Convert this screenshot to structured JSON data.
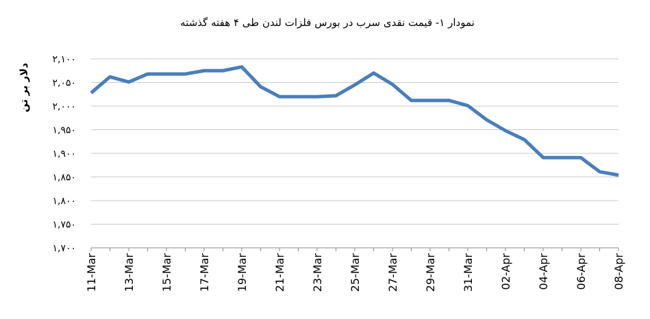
{
  "chart_data": {
    "type": "line",
    "title": "نمودار ۱- قیمت نقدی سرب  در بورس فلزات لندن طی ۴ هفته گذشته",
    "y_label": "دلار بر تن",
    "categories": [
      "11-Mar",
      null,
      "13-Mar",
      null,
      "15-Mar",
      null,
      "17-Mar",
      null,
      "19-Mar",
      null,
      "21-Mar",
      null,
      "23-Mar",
      null,
      "25-Mar",
      null,
      "27-Mar",
      null,
      "29-Mar",
      null,
      "31-Mar",
      null,
      "02-Apr",
      null,
      "04-Apr",
      null,
      "06-Apr",
      null,
      "08-Apr"
    ],
    "values": [
      2028,
      2062,
      2051,
      2068,
      2068,
      2068,
      2075,
      2075,
      2083,
      2041,
      2020,
      2020,
      2020,
      2022,
      2045,
      2070,
      2046,
      2012,
      2012,
      2012,
      2001,
      1971,
      1948,
      1929,
      1891,
      1891,
      1891,
      1861,
      1854
    ],
    "color": "#4a7ebb",
    "ylim": [
      1700,
      2100
    ],
    "yticks": [
      {
        "value": 1700,
        "label": "۱,۷۰۰"
      },
      {
        "value": 1750,
        "label": "۱,۷۵۰"
      },
      {
        "value": 1800,
        "label": "۱,۸۰۰"
      },
      {
        "value": 1850,
        "label": "۱,۸۵۰"
      },
      {
        "value": 1900,
        "label": "۱,۹۰۰"
      },
      {
        "value": 1950,
        "label": "۱,۹۵۰"
      },
      {
        "value": 2000,
        "label": "۲,۰۰۰"
      },
      {
        "value": 2050,
        "label": "۲,۰۵۰"
      },
      {
        "value": 2100,
        "label": "۲,۱۰۰"
      }
    ],
    "grid": true
  }
}
